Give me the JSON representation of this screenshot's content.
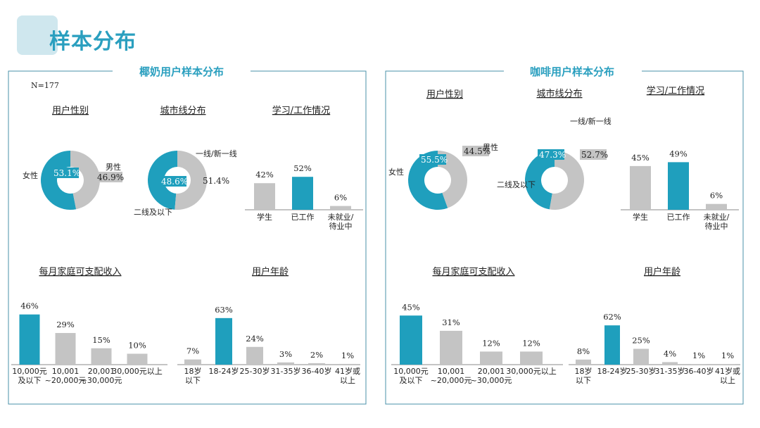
{
  "page_title": "样本分布",
  "colors": {
    "accent": "#1f9fbd",
    "neutral": "#c4c4c4",
    "title": "#2a9fbf",
    "panel_border": "#4a90a8"
  },
  "panels": [
    {
      "title": "椰奶用户样本分布",
      "n_label": "N=177"
    },
    {
      "title": "咖啡用户样本分布",
      "n_label": ""
    }
  ],
  "chart_data": [
    {
      "panel": 0,
      "type": "pie",
      "title": "用户性别",
      "labels": [
        "女性",
        "男性"
      ],
      "values": [
        53.1,
        46.9
      ],
      "value_labels": [
        "53.1%",
        "46.9%"
      ]
    },
    {
      "panel": 0,
      "type": "pie",
      "title": "城市线分布",
      "labels": [
        "二线及以下",
        "一线/新一线"
      ],
      "values": [
        48.6,
        51.4
      ],
      "value_labels": [
        "48.6%",
        "51.4%"
      ]
    },
    {
      "panel": 0,
      "type": "bar",
      "title": "学习/工作情况",
      "categories": [
        "学生",
        "已工作",
        "未就业/待业中"
      ],
      "values": [
        42,
        52,
        6
      ],
      "value_labels": [
        "42%",
        "52%",
        "6%"
      ],
      "highlight": [
        1
      ]
    },
    {
      "panel": 0,
      "type": "bar",
      "title": "每月家庭可支配收入",
      "categories": [
        "10,000元及以下",
        "10,001~20,000元",
        "20,001~30,000元",
        "30,000元以上"
      ],
      "values": [
        46,
        29,
        15,
        10
      ],
      "value_labels": [
        "46%",
        "29%",
        "15%",
        "10%"
      ],
      "highlight": [
        0
      ]
    },
    {
      "panel": 0,
      "type": "bar",
      "title": "用户年龄",
      "categories": [
        "18岁以下",
        "18-24岁",
        "25-30岁",
        "31-35岁",
        "36-40岁",
        "41岁或以上"
      ],
      "values": [
        7,
        63,
        24,
        3,
        2,
        1
      ],
      "value_labels": [
        "7%",
        "63%",
        "24%",
        "3%",
        "2%",
        "1%"
      ],
      "highlight": [
        1
      ]
    },
    {
      "panel": 1,
      "type": "pie",
      "title": "用户性别",
      "labels": [
        "女性",
        "男性"
      ],
      "values": [
        55.5,
        44.5
      ],
      "value_labels": [
        "55.5%",
        "44.5%"
      ]
    },
    {
      "panel": 1,
      "type": "pie",
      "title": "城市线分布",
      "labels": [
        "二线及以下",
        "一线/新一线"
      ],
      "values": [
        47.3,
        52.7
      ],
      "value_labels": [
        "47.3%",
        "52.7%"
      ]
    },
    {
      "panel": 1,
      "type": "bar",
      "title": "学习/工作情况",
      "categories": [
        "学生",
        "已工作",
        "未就业/待业中"
      ],
      "values": [
        45,
        49,
        6
      ],
      "value_labels": [
        "45%",
        "49%",
        "6%"
      ],
      "highlight": [
        1
      ]
    },
    {
      "panel": 1,
      "type": "bar",
      "title": "每月家庭可支配收入",
      "categories": [
        "10,000元及以下",
        "10,001~20,000元",
        "20,001~30,000元",
        "30,000元以上"
      ],
      "values": [
        45,
        31,
        12,
        12
      ],
      "value_labels": [
        "45%",
        "31%",
        "12%",
        "12%"
      ],
      "highlight": [
        0
      ]
    },
    {
      "panel": 1,
      "type": "bar",
      "title": "用户年龄",
      "categories": [
        "18岁以下",
        "18-24岁",
        "25-30岁",
        "31-35岁",
        "36-40岁",
        "41岁或以上"
      ],
      "values": [
        8,
        62,
        25,
        4,
        1,
        1
      ],
      "value_labels": [
        "8%",
        "62%",
        "25%",
        "4%",
        "1%",
        "1%"
      ],
      "highlight": [
        1
      ]
    }
  ]
}
